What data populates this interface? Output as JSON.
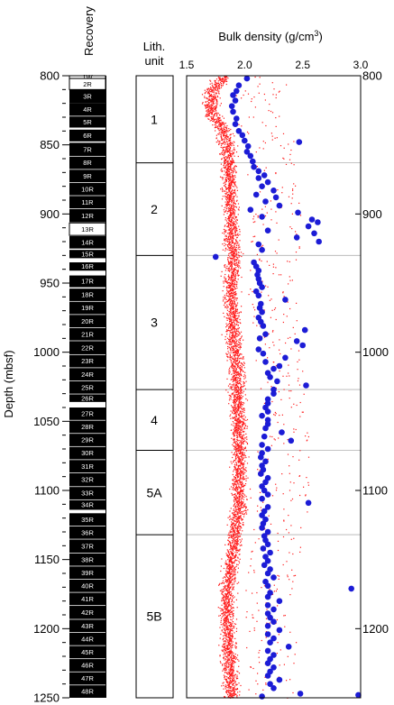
{
  "chart_data": {
    "type": "scatter",
    "depth_axis": {
      "label": "Depth (mbsf)",
      "range": [
        800,
        1250
      ],
      "left_ticks": [
        800,
        850,
        900,
        950,
        1000,
        1050,
        1100,
        1150,
        1200,
        1250
      ],
      "right_ticks": [
        800,
        900,
        1000,
        1100,
        1200
      ]
    },
    "recovery": {
      "title": "Recovery",
      "cores": [
        {
          "name": "1W",
          "top": 800.0,
          "bottom": 802.0,
          "fill": "white"
        },
        {
          "name": "2R",
          "top": 802.0,
          "bottom": 810.0,
          "fill": "white"
        },
        {
          "name": "3R",
          "top": 810.0,
          "bottom": 820.0,
          "fill": "black"
        },
        {
          "name": "4R",
          "top": 820.0,
          "bottom": 829.0,
          "fill": "black"
        },
        {
          "name": "5R",
          "top": 829.5,
          "bottom": 837.5,
          "fill": "black"
        },
        {
          "name": "6R",
          "top": 839.0,
          "bottom": 847.5,
          "fill": "black"
        },
        {
          "name": "7R",
          "top": 848.5,
          "bottom": 858.0,
          "fill": "black"
        },
        {
          "name": "8R",
          "top": 858.5,
          "bottom": 867.5,
          "fill": "black"
        },
        {
          "name": "9R",
          "top": 868.0,
          "bottom": 877.0,
          "fill": "black"
        },
        {
          "name": "10R",
          "top": 877.5,
          "bottom": 886.5,
          "fill": "black"
        },
        {
          "name": "11R",
          "top": 887.0,
          "bottom": 896.0,
          "fill": "black"
        },
        {
          "name": "12R",
          "top": 896.5,
          "bottom": 906.0,
          "fill": "black"
        },
        {
          "name": "13R",
          "top": 906.5,
          "bottom": 915.5,
          "fill": "white"
        },
        {
          "name": "14R",
          "top": 916.0,
          "bottom": 925.0,
          "fill": "black"
        },
        {
          "name": "15R",
          "top": 926.0,
          "bottom": 932.0,
          "fill": "black"
        },
        {
          "name": "16R",
          "top": 935.0,
          "bottom": 941.0,
          "fill": "black"
        },
        {
          "name": "17R",
          "top": 944.5,
          "bottom": 953.0,
          "fill": "black"
        },
        {
          "name": "18R",
          "top": 954.0,
          "bottom": 963.0,
          "fill": "black"
        },
        {
          "name": "19R",
          "top": 963.5,
          "bottom": 972.5,
          "fill": "black"
        },
        {
          "name": "20R",
          "top": 973.0,
          "bottom": 982.0,
          "fill": "black"
        },
        {
          "name": "21R",
          "top": 982.5,
          "bottom": 991.5,
          "fill": "black"
        },
        {
          "name": "22R",
          "top": 992.0,
          "bottom": 1001.5,
          "fill": "black"
        },
        {
          "name": "23R",
          "top": 1002.0,
          "bottom": 1011.0,
          "fill": "black"
        },
        {
          "name": "24R",
          "top": 1011.5,
          "bottom": 1020.5,
          "fill": "black"
        },
        {
          "name": "25R",
          "top": 1021.0,
          "bottom": 1030.0,
          "fill": "black"
        },
        {
          "name": "26R",
          "top": 1030.5,
          "bottom": 1036.0,
          "fill": "black"
        },
        {
          "name": "27R",
          "top": 1040.0,
          "bottom": 1049.0,
          "fill": "black"
        },
        {
          "name": "28R",
          "top": 1049.5,
          "bottom": 1058.5,
          "fill": "black"
        },
        {
          "name": "29R",
          "top": 1059.0,
          "bottom": 1068.0,
          "fill": "black"
        },
        {
          "name": "30R",
          "top": 1068.5,
          "bottom": 1077.5,
          "fill": "black"
        },
        {
          "name": "31R",
          "top": 1078.0,
          "bottom": 1087.0,
          "fill": "black"
        },
        {
          "name": "32R",
          "top": 1087.5,
          "bottom": 1097.0,
          "fill": "black"
        },
        {
          "name": "33R",
          "top": 1097.5,
          "bottom": 1106.5,
          "fill": "black"
        },
        {
          "name": "34R",
          "top": 1107.0,
          "bottom": 1114.0,
          "fill": "black"
        },
        {
          "name": "35R",
          "top": 1116.5,
          "bottom": 1125.5,
          "fill": "black"
        },
        {
          "name": "36R",
          "top": 1126.0,
          "bottom": 1135.0,
          "fill": "black"
        },
        {
          "name": "37R",
          "top": 1135.5,
          "bottom": 1145.0,
          "fill": "black"
        },
        {
          "name": "38R",
          "top": 1145.5,
          "bottom": 1154.5,
          "fill": "black"
        },
        {
          "name": "39R",
          "top": 1155.0,
          "bottom": 1164.0,
          "fill": "black"
        },
        {
          "name": "40R",
          "top": 1164.5,
          "bottom": 1173.5,
          "fill": "black"
        },
        {
          "name": "41R",
          "top": 1174.0,
          "bottom": 1183.0,
          "fill": "black"
        },
        {
          "name": "42R",
          "top": 1183.5,
          "bottom": 1193.0,
          "fill": "black"
        },
        {
          "name": "43R",
          "top": 1193.5,
          "bottom": 1202.5,
          "fill": "black"
        },
        {
          "name": "44R",
          "top": 1203.0,
          "bottom": 1212.0,
          "fill": "black"
        },
        {
          "name": "45R",
          "top": 1212.5,
          "bottom": 1221.5,
          "fill": "black"
        },
        {
          "name": "46R",
          "top": 1222.0,
          "bottom": 1231.0,
          "fill": "black"
        },
        {
          "name": "47R",
          "top": 1231.5,
          "bottom": 1240.5,
          "fill": "black"
        },
        {
          "name": "48R",
          "top": 1241.0,
          "bottom": 1250.0,
          "fill": "black"
        }
      ]
    },
    "lith_units": {
      "title_line1": "Lith.",
      "title_line2": "unit",
      "units": [
        {
          "name": "1",
          "top": 800,
          "bottom": 863
        },
        {
          "name": "2",
          "top": 863,
          "bottom": 930
        },
        {
          "name": "3",
          "top": 930,
          "bottom": 1027
        },
        {
          "name": "4",
          "top": 1027,
          "bottom": 1071
        },
        {
          "name": "5A",
          "top": 1071,
          "bottom": 1132
        },
        {
          "name": "5B",
          "top": 1132,
          "bottom": 1250
        }
      ]
    },
    "density": {
      "title": "Bulk density (g/cm",
      "title_sup": "3",
      "title_end": ")",
      "xlim": [
        1.5,
        3.0
      ],
      "x_ticks": [
        "1.5",
        "2.0",
        "2.5",
        "3.0"
      ],
      "unit_boundary_depths": [
        863,
        930,
        1027,
        1071,
        1132
      ],
      "colors": {
        "log": "#ff1a1a",
        "discrete": "#1c1cd6",
        "boundary": "#b0b0b0"
      },
      "log_trend": [
        [
          800,
          1.82
        ],
        [
          810,
          1.72
        ],
        [
          825,
          1.7
        ],
        [
          840,
          1.82
        ],
        [
          855,
          1.85
        ],
        [
          870,
          1.86
        ],
        [
          885,
          1.87
        ],
        [
          900,
          1.88
        ],
        [
          915,
          1.88
        ],
        [
          930,
          1.9
        ],
        [
          945,
          1.88
        ],
        [
          960,
          1.88
        ],
        [
          975,
          1.9
        ],
        [
          990,
          1.9
        ],
        [
          1005,
          1.92
        ],
        [
          1020,
          1.93
        ],
        [
          1035,
          1.93
        ],
        [
          1050,
          1.95
        ],
        [
          1065,
          1.95
        ],
        [
          1080,
          1.95
        ],
        [
          1095,
          1.95
        ],
        [
          1110,
          1.95
        ],
        [
          1125,
          1.92
        ],
        [
          1140,
          1.9
        ],
        [
          1155,
          1.88
        ],
        [
          1170,
          1.85
        ],
        [
          1185,
          1.85
        ],
        [
          1200,
          1.85
        ],
        [
          1215,
          1.86
        ],
        [
          1230,
          1.87
        ],
        [
          1250,
          1.88
        ]
      ],
      "discrete": [
        [
          802,
          2.02
        ],
        [
          807,
          1.95
        ],
        [
          811,
          1.93
        ],
        [
          814,
          1.9
        ],
        [
          818,
          1.92
        ],
        [
          822,
          1.89
        ],
        [
          826,
          1.9
        ],
        [
          831,
          1.93
        ],
        [
          835,
          1.92
        ],
        [
          840,
          1.95
        ],
        [
          843,
          1.98
        ],
        [
          847,
          2.0
        ],
        [
          848,
          2.47
        ],
        [
          851,
          2.03
        ],
        [
          855,
          2.02
        ],
        [
          858,
          2.05
        ],
        [
          862,
          2.07
        ],
        [
          866,
          2.08
        ],
        [
          869,
          2.12
        ],
        [
          872,
          2.17
        ],
        [
          874,
          2.12
        ],
        [
          877,
          2.2
        ],
        [
          880,
          2.15
        ],
        [
          883,
          2.25
        ],
        [
          886,
          2.1
        ],
        [
          888,
          2.27
        ],
        [
          891,
          2.18
        ],
        [
          894,
          2.3
        ],
        [
          897,
          2.05
        ],
        [
          899,
          2.46
        ],
        [
          902,
          2.15
        ],
        [
          904,
          2.58
        ],
        [
          906,
          2.63
        ],
        [
          909,
          2.55
        ],
        [
          912,
          2.2
        ],
        [
          914,
          2.6
        ],
        [
          917,
          2.45
        ],
        [
          920,
          2.64
        ],
        [
          922,
          2.12
        ],
        [
          926,
          2.15
        ],
        [
          931,
          1.75
        ],
        [
          935,
          2.08
        ],
        [
          938,
          2.1
        ],
        [
          941,
          2.12
        ],
        [
          944,
          2.11
        ],
        [
          947,
          2.12
        ],
        [
          950,
          2.13
        ],
        [
          953,
          2.15
        ],
        [
          956,
          2.1
        ],
        [
          959,
          2.12
        ],
        [
          962,
          2.35
        ],
        [
          965,
          2.14
        ],
        [
          968,
          2.13
        ],
        [
          971,
          2.15
        ],
        [
          975,
          2.12
        ],
        [
          978,
          2.14
        ],
        [
          981,
          2.16
        ],
        [
          984,
          2.52
        ],
        [
          987,
          2.18
        ],
        [
          990,
          2.13
        ],
        [
          992,
          2.45
        ],
        [
          995,
          2.5
        ],
        [
          998,
          2.12
        ],
        [
          1001,
          2.16
        ],
        [
          1004,
          2.35
        ],
        [
          1007,
          2.18
        ],
        [
          1010,
          2.3
        ],
        [
          1012,
          2.25
        ],
        [
          1015,
          2.2
        ],
        [
          1018,
          2.22
        ],
        [
          1021,
          2.28
        ],
        [
          1024,
          2.53
        ],
        [
          1027,
          2.25
        ],
        [
          1030,
          2.25
        ],
        [
          1034,
          2.2
        ],
        [
          1037,
          2.2
        ],
        [
          1040,
          2.18
        ],
        [
          1043,
          2.2
        ],
        [
          1046,
          2.15
        ],
        [
          1049,
          2.2
        ],
        [
          1052,
          2.2
        ],
        [
          1055,
          2.18
        ],
        [
          1058,
          2.32
        ],
        [
          1061,
          2.17
        ],
        [
          1064,
          2.4
        ],
        [
          1067,
          2.15
        ],
        [
          1070,
          2.2
        ],
        [
          1073,
          2.15
        ],
        [
          1076,
          2.14
        ],
        [
          1079,
          2.18
        ],
        [
          1082,
          2.15
        ],
        [
          1085,
          2.16
        ],
        [
          1088,
          2.14
        ],
        [
          1091,
          2.2
        ],
        [
          1094,
          2.18
        ],
        [
          1097,
          2.15
        ],
        [
          1100,
          2.17
        ],
        [
          1103,
          2.2
        ],
        [
          1106,
          2.15
        ],
        [
          1109,
          2.55
        ],
        [
          1112,
          2.2
        ],
        [
          1115,
          2.17
        ],
        [
          1118,
          2.15
        ],
        [
          1121,
          2.18
        ],
        [
          1124,
          2.16
        ],
        [
          1127,
          2.15
        ],
        [
          1130,
          2.2
        ],
        [
          1133,
          2.17
        ],
        [
          1136,
          2.18
        ],
        [
          1139,
          2.2
        ],
        [
          1142,
          2.16
        ],
        [
          1145,
          2.22
        ],
        [
          1148,
          2.18
        ],
        [
          1151,
          2.2
        ],
        [
          1154,
          2.17
        ],
        [
          1157,
          2.22
        ],
        [
          1160,
          2.2
        ],
        [
          1163,
          2.25
        ],
        [
          1166,
          2.18
        ],
        [
          1169,
          2.2
        ],
        [
          1171,
          2.92
        ],
        [
          1174,
          2.22
        ],
        [
          1177,
          2.2
        ],
        [
          1180,
          2.3
        ],
        [
          1183,
          2.2
        ],
        [
          1186,
          2.25
        ],
        [
          1189,
          2.2
        ],
        [
          1192,
          2.22
        ],
        [
          1195,
          2.25
        ],
        [
          1198,
          2.2
        ],
        [
          1201,
          2.3
        ],
        [
          1204,
          2.2
        ],
        [
          1207,
          2.25
        ],
        [
          1210,
          2.22
        ],
        [
          1213,
          2.38
        ],
        [
          1216,
          2.2
        ],
        [
          1219,
          2.25
        ],
        [
          1222,
          2.22
        ],
        [
          1225,
          2.2
        ],
        [
          1228,
          2.25
        ],
        [
          1231,
          2.22
        ],
        [
          1234,
          2.2
        ],
        [
          1237,
          2.3
        ],
        [
          1240,
          2.22
        ],
        [
          1243,
          2.25
        ],
        [
          1247,
          2.48
        ],
        [
          1248,
          2.98
        ],
        [
          1249,
          2.15
        ]
      ]
    }
  }
}
